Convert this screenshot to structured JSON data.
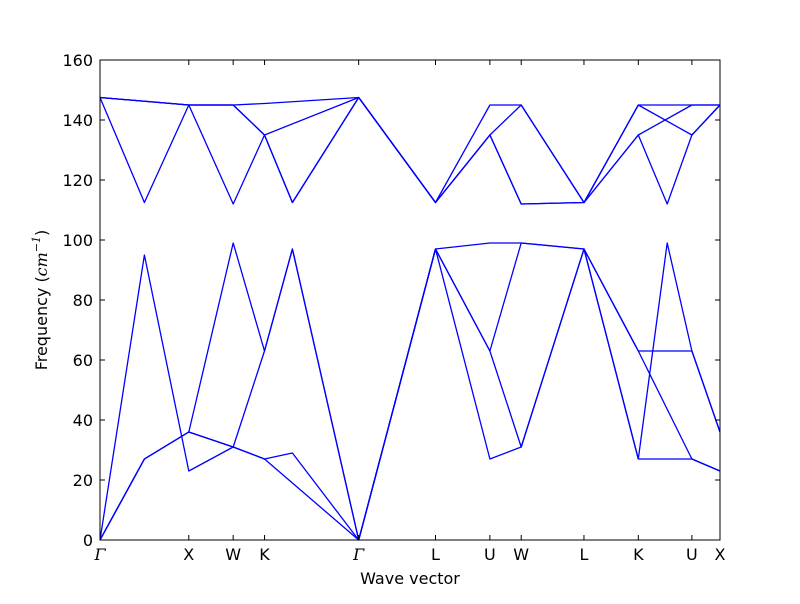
{
  "chart_data": {
    "type": "line",
    "title": "",
    "xlabel": "Wave vector",
    "ylabel": "Frequency",
    "ylabel_unit_base": "cm",
    "ylabel_unit_exp": "−1",
    "ylim": [
      0,
      160
    ],
    "yticks": [
      0,
      20,
      40,
      60,
      80,
      100,
      120,
      140,
      160
    ],
    "x_range": [
      0,
      6.285
    ],
    "xticks": [
      {
        "label": "Γ",
        "x": 0
      },
      {
        "label": "X",
        "x": 0.9
      },
      {
        "label": "W",
        "x": 1.35
      },
      {
        "label": "K",
        "x": 1.668
      },
      {
        "label": "Γ",
        "x": 2.622
      },
      {
        "label": "L",
        "x": 3.401
      },
      {
        "label": "U",
        "x": 3.952
      },
      {
        "label": "W",
        "x": 4.27
      },
      {
        "label": "L",
        "x": 4.906
      },
      {
        "label": "K",
        "x": 5.457
      },
      {
        "label": "U",
        "x": 6.0
      },
      {
        "label": "X",
        "x": 6.285
      }
    ],
    "line_color": "#0000ff",
    "grid": false,
    "series": [
      {
        "x": [
          0,
          0.45,
          0.9,
          1.35,
          1.668,
          2.622,
          3.401,
          3.952,
          4.27,
          4.906,
          5.457,
          6.0,
          6.285
        ],
        "y": [
          0,
          27,
          36,
          31,
          27,
          0,
          97,
          27,
          31,
          97,
          27,
          27,
          23
        ]
      },
      {
        "x": [
          0,
          0.45,
          0.9,
          1.35,
          1.668,
          1.95,
          2.622,
          3.401,
          3.952,
          4.27,
          4.906,
          5.457,
          6.0,
          6.285
        ],
        "y": [
          0,
          27,
          36,
          31,
          63,
          97,
          0,
          97,
          63,
          31,
          97,
          63,
          63,
          36
        ]
      },
      {
        "x": [
          0,
          0.45,
          0.9,
          1.35,
          1.668,
          1.95,
          2.622,
          3.401,
          3.952,
          4.27,
          4.906,
          5.457,
          5.75,
          6.0,
          6.285
        ],
        "y": [
          0,
          95,
          23,
          31,
          27,
          29,
          0,
          97,
          63,
          99,
          97,
          27,
          99,
          63,
          36
        ]
      },
      {
        "x": [
          0,
          0.45,
          0.9,
          1.35,
          1.668,
          1.95,
          2.622,
          3.401,
          3.952,
          4.27,
          4.906,
          5.457,
          6.0,
          6.285
        ],
        "y": [
          0,
          27,
          36,
          99,
          63,
          97,
          0,
          97,
          99,
          99,
          97,
          63,
          27,
          23
        ]
      },
      {
        "x": [
          0,
          0.45,
          0.9,
          1.35,
          1.668,
          1.95,
          2.622,
          3.401,
          3.952,
          4.27,
          4.906,
          5.457,
          5.75,
          6.0,
          6.285
        ],
        "y": [
          147.5,
          112.5,
          145,
          112,
          135,
          112.5,
          147.5,
          112.5,
          135,
          112,
          112.5,
          135,
          112,
          135,
          145
        ]
      },
      {
        "x": [
          0,
          0.9,
          1.35,
          1.668,
          2.622,
          3.401,
          3.952,
          4.27,
          4.906,
          5.457,
          6.0,
          6.285
        ],
        "y": [
          147.5,
          145,
          145,
          135,
          147.5,
          112.5,
          135,
          145,
          112.5,
          135,
          145,
          145
        ]
      },
      {
        "x": [
          0,
          0.9,
          1.35,
          1.668,
          1.95,
          2.622,
          3.401,
          3.952,
          4.27,
          4.906,
          5.457,
          6.0,
          6.285
        ],
        "y": [
          147.5,
          145,
          145,
          135,
          112.5,
          147.5,
          112.5,
          145,
          145,
          112.5,
          145,
          145,
          145
        ]
      },
      {
        "x": [
          0,
          0.9,
          1.35,
          1.668,
          2.622,
          3.401,
          3.952,
          4.27,
          4.906,
          5.457,
          6.0,
          6.285
        ],
        "y": [
          147.5,
          145,
          145,
          145.5,
          147.5,
          112.5,
          135,
          112,
          112.5,
          145,
          135,
          145
        ]
      }
    ]
  }
}
